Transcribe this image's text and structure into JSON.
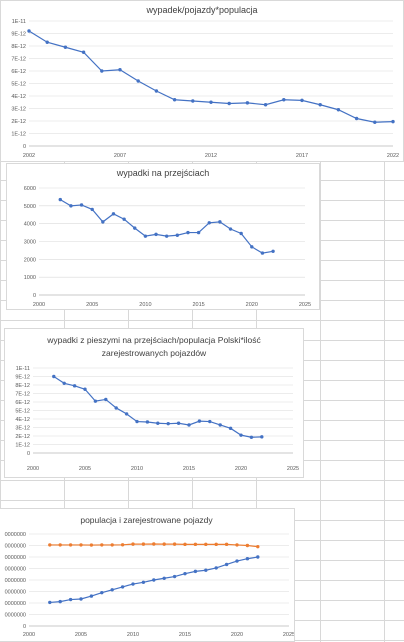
{
  "charts": [
    {
      "title": "wypadek/pojazdy*populacja",
      "x_tick_labels": [
        "2002",
        "2007",
        "2012",
        "2017",
        "2022"
      ],
      "y_tick_labels": [
        "0",
        "1E-12",
        "2E-12",
        "3E-12",
        "4E-12",
        "5E-12",
        "6E-12",
        "7E-12",
        "8E-12",
        "9E-12",
        "1E-11"
      ],
      "chart_data": {
        "type": "line",
        "title": "wypadek/pojazdy*populacja",
        "xlabel": "",
        "ylabel": "",
        "xlim": [
          2002,
          2022
        ],
        "ylim": [
          0,
          1e-11
        ],
        "x": [
          2002,
          2003,
          2004,
          2005,
          2006,
          2007,
          2008,
          2009,
          2010,
          2011,
          2012,
          2013,
          2014,
          2015,
          2016,
          2017,
          2018,
          2019,
          2020,
          2021,
          2022
        ],
        "y": [
          9.2e-12,
          8.3e-12,
          7.9e-12,
          7.5e-12,
          6e-12,
          6.1e-12,
          5.2e-12,
          4.4e-12,
          3.7e-12,
          3.6e-12,
          3.5e-12,
          3.4e-12,
          3.45e-12,
          3.3e-12,
          3.7e-12,
          3.65e-12,
          3.3e-12,
          2.9e-12,
          2.2e-12,
          1.9e-12,
          1.95e-12
        ],
        "color": "#4472c4",
        "grid": true
      }
    },
    {
      "title": "wypadki na przejściach",
      "x_tick_labels": [
        "2000",
        "2005",
        "2010",
        "2015",
        "2020",
        "2025"
      ],
      "y_tick_labels": [
        "0",
        "1000",
        "2000",
        "3000",
        "4000",
        "5000",
        "6000"
      ],
      "chart_data": {
        "type": "line",
        "title": "wypadki na przejściach",
        "xlabel": "",
        "ylabel": "",
        "xlim": [
          2000,
          2025
        ],
        "ylim": [
          0,
          6000
        ],
        "x": [
          2002,
          2003,
          2004,
          2005,
          2006,
          2007,
          2008,
          2009,
          2010,
          2011,
          2012,
          2013,
          2014,
          2015,
          2016,
          2017,
          2018,
          2019,
          2020,
          2021,
          2022
        ],
        "y": [
          5350,
          5000,
          5050,
          4800,
          4100,
          4550,
          4250,
          3750,
          3300,
          3400,
          3300,
          3350,
          3500,
          3500,
          4050,
          4100,
          3700,
          3450,
          2700,
          2350,
          2450
        ],
        "color": "#4472c4",
        "grid": true
      }
    },
    {
      "title": "wypadki z pieszymi na przejściach/populacja Polski*ilość zarejestrowanych pojazdów",
      "title_line1": "wypadki z pieszymi na przejściach/populacja Polski*ilość",
      "title_line2": "zarejestrowanych pojazdów",
      "x_tick_labels": [
        "2000",
        "2005",
        "2010",
        "2015",
        "2020",
        "2025"
      ],
      "y_tick_labels": [
        "0",
        "1E-12",
        "2E-12",
        "3E-12",
        "4E-12",
        "5E-12",
        "6E-12",
        "7E-12",
        "8E-12",
        "9E-12",
        "1E-11"
      ],
      "chart_data": {
        "type": "line",
        "title": "wypadki z pieszymi na przejściach/populacja Polski*ilość zarejestrowanych pojazdów",
        "xlabel": "",
        "ylabel": "",
        "xlim": [
          2000,
          2025
        ],
        "ylim": [
          0,
          1e-11
        ],
        "x": [
          2002,
          2003,
          2004,
          2005,
          2006,
          2007,
          2008,
          2009,
          2010,
          2011,
          2012,
          2013,
          2014,
          2015,
          2016,
          2017,
          2018,
          2019,
          2020,
          2021,
          2022
        ],
        "y": [
          9e-12,
          8.2e-12,
          7.9e-12,
          7.5e-12,
          6.1e-12,
          6.3e-12,
          5.3e-12,
          4.6e-12,
          3.7e-12,
          3.65e-12,
          3.5e-12,
          3.45e-12,
          3.5e-12,
          3.3e-12,
          3.75e-12,
          3.7e-12,
          3.3e-12,
          2.9e-12,
          2.1e-12,
          1.85e-12,
          1.9e-12
        ],
        "color": "#4472c4",
        "grid": true
      }
    },
    {
      "title": "populacja i zarejestrowane pojazdy",
      "x_tick_labels": [
        "2000",
        "2005",
        "2010",
        "2015",
        "2020",
        "2025"
      ],
      "y_tick_labels": [
        "0",
        "0000000",
        "0000000",
        "0000000",
        "0000000",
        "0000000",
        "0000000",
        "0000000",
        "0000000"
      ],
      "chart_data": {
        "type": "line",
        "title": "populacja i zarejestrowane pojazdy",
        "xlabel": "",
        "ylabel": "",
        "xlim": [
          2000,
          2025
        ],
        "ylim": [
          0,
          8
        ],
        "x": [
          2002,
          2003,
          2004,
          2005,
          2006,
          2007,
          2008,
          2009,
          2010,
          2011,
          2012,
          2013,
          2014,
          2015,
          2016,
          2017,
          2018,
          2019,
          2020,
          2021,
          2022
        ],
        "series": [
          {
            "color": "#ed7d31",
            "values": [
              7.05,
              7.05,
              7.05,
              7.05,
              7.04,
              7.05,
              7.05,
              7.06,
              7.12,
              7.12,
              7.13,
              7.12,
              7.12,
              7.1,
              7.1,
              7.1,
              7.1,
              7.1,
              7.05,
              7.0,
              6.9
            ]
          },
          {
            "color": "#4472c4",
            "values": [
              2.05,
              2.12,
              2.3,
              2.35,
              2.6,
              2.9,
              3.15,
              3.4,
              3.65,
              3.8,
              4.0,
              4.15,
              4.3,
              4.55,
              4.75,
              4.85,
              5.05,
              5.35,
              5.65,
              5.85,
              6.0
            ]
          }
        ],
        "grid": true
      }
    }
  ]
}
